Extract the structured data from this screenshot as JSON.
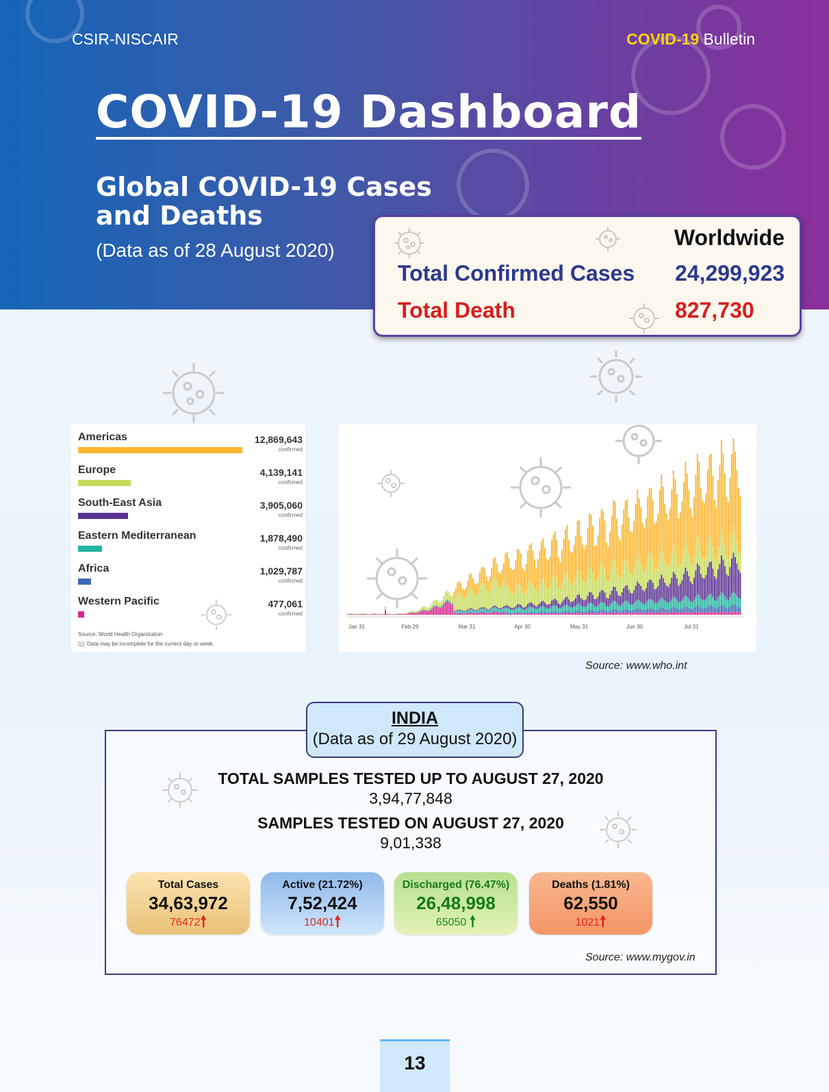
{
  "header": {
    "org": "CSIR-NISCAIR",
    "bulletin_highlight": "COVID-19",
    "bulletin_rest": " Bulletin",
    "title": "COVID-19 Dashboard",
    "subtitle": "Global COVID-19 Cases and Deaths",
    "as_of": "(Data as of 28 August 2020)"
  },
  "worldwide": {
    "heading": "Worldwide",
    "confirmed_label": "Total Confirmed Cases",
    "confirmed_value": "24,299,923",
    "death_label": "Total Death",
    "death_value": "827,730"
  },
  "regions": {
    "items": [
      {
        "name": "Americas",
        "value": "12,869,643",
        "sub": "confirmed",
        "color": "#fbb72f",
        "confirmed": 12869643
      },
      {
        "name": "Europe",
        "value": "4,139,141",
        "sub": "confirmed",
        "color": "#c7dc5e",
        "confirmed": 4139141
      },
      {
        "name": "South-East Asia",
        "value": "3,905,060",
        "sub": "confirmed",
        "color": "#5b3393",
        "confirmed": 3905060
      },
      {
        "name": "Eastern Mediterranean",
        "value": "1,878,490",
        "sub": "confirmed",
        "color": "#22b5a0",
        "confirmed": 1878490
      },
      {
        "name": "Africa",
        "value": "1,029,787",
        "sub": "confirmed",
        "color": "#3b6cb5",
        "confirmed": 1029787
      },
      {
        "name": "Western Pacific",
        "value": "477,061",
        "sub": "confirmed",
        "color": "#d6278e",
        "confirmed": 477061
      }
    ],
    "source": "Source: World Health Organization",
    "note": "Data may be incomplete for the current day or week."
  },
  "chart_data": {
    "type": "bar",
    "stacked": true,
    "x_tick_labels": [
      "Jan 31",
      "Feb 29",
      "Mar 31",
      "Apr 30",
      "May 31",
      "Jun 30",
      "Jul 31"
    ],
    "series": [
      {
        "name": "Western Pacific",
        "color": "#d6278e"
      },
      {
        "name": "Africa",
        "color": "#3b6cb5"
      },
      {
        "name": "Eastern Mediterranean",
        "color": "#22b5a0"
      },
      {
        "name": "South-East Asia",
        "color": "#5b3393"
      },
      {
        "name": "Europe",
        "color": "#c7dc5e"
      },
      {
        "name": "Americas",
        "color": "#fbb72f"
      }
    ],
    "grid": false
  },
  "source_who": "Source: www.who.int",
  "india": {
    "title": "INDIA",
    "as_of": "(Data as of 29 August 2020)",
    "samples_total_label": "TOTAL SAMPLES TESTED UP TO AUGUST 27, 2020",
    "samples_total_value": "3,94,77,848",
    "samples_day_label": "SAMPLES TESTED ON AUGUST 27, 2020",
    "samples_day_value": "9,01,338",
    "stats": {
      "total": {
        "label": "Total Cases",
        "value": "34,63,972",
        "delta": "76472"
      },
      "active": {
        "label": "Active (21.72%)",
        "value": "7,52,424",
        "delta": "10401"
      },
      "discharged": {
        "label": "Discharged (76.47%)",
        "value": "26,48,998",
        "delta": "65050"
      },
      "deaths": {
        "label": "Deaths (1.81%)",
        "value": "62,550",
        "delta": "1021"
      }
    },
    "arrow_up": "🠕",
    "source": "Source: www.mygov.in"
  },
  "page_number": "13"
}
